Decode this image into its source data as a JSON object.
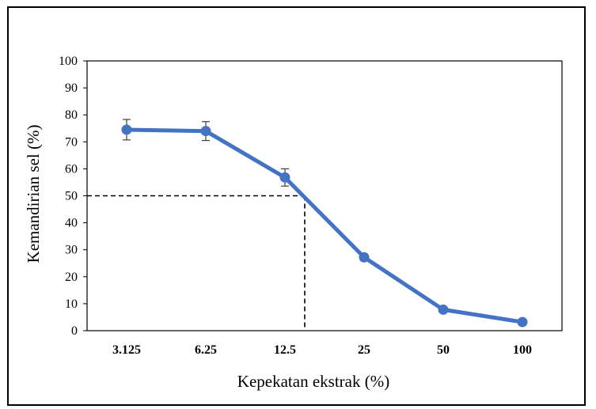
{
  "chart_data": {
    "type": "line",
    "title": "",
    "xlabel": "Kepekatan ekstrak (%)",
    "ylabel": "Kemandirian sel (%)",
    "categories": [
      "3.125",
      "6.25",
      "12.5",
      "25",
      "50",
      "100"
    ],
    "series": [
      {
        "values": [
          74.5,
          74,
          56.8,
          27.2,
          7.8,
          3.2
        ],
        "error": [
          3.8,
          3.5,
          3.2,
          1.2,
          0.8,
          0.5
        ],
        "color": "#4472C4"
      }
    ],
    "ylim": [
      0,
      100
    ],
    "yticks": [
      0,
      10,
      20,
      30,
      40,
      50,
      60,
      70,
      80,
      90,
      100
    ],
    "reference": {
      "y": 50,
      "x_category_position": 2.25,
      "style": "dashed"
    },
    "grid": false,
    "legend": "none"
  }
}
